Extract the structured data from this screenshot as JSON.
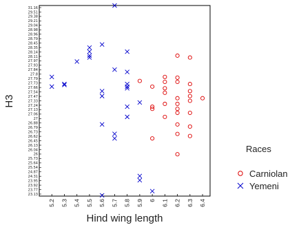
{
  "chart_data": {
    "type": "scatter",
    "title": "",
    "xlabel": "Hind wing length",
    "ylabel": "H3",
    "xlim": [
      5.1,
      6.46
    ],
    "ylim": [
      23.1,
      31.16
    ],
    "grid": false,
    "legend_placement": "right",
    "legend_title": "Races",
    "x_ticks": [
      "5.2",
      "5.3",
      "5.4",
      "5.5",
      "5.6",
      "5.7",
      "5.8",
      "5.9",
      "6",
      "6.1",
      "6.2",
      "6.3",
      "6.4"
    ],
    "y_ticks": [
      "31.16",
      "29.51",
      "29.38",
      "29.21",
      "29.04",
      "28.98",
      "28.96",
      "28.79",
      "28.45",
      "28.35",
      "28.14",
      "28.11",
      "27.97",
      "27.93",
      "27.84",
      "27.8",
      "27.79",
      "27.73",
      "27.66",
      "27.54",
      "27.47",
      "27.33",
      "27.24",
      "27.13",
      "27.06",
      "27",
      "26.88",
      "26.79",
      "26.73",
      "26.62",
      "26.45",
      "26.13",
      "26.04",
      "26",
      "25.73",
      "25.64",
      "25.54",
      "24.87",
      "24.31",
      "23.95",
      "23.92",
      "23.77",
      "23.13"
    ],
    "series": [
      {
        "name": "Carniolan",
        "marker": "circle",
        "color": "#dd0000",
        "points": [
          [
            5.9,
            27.97
          ],
          [
            6.0,
            27.73
          ],
          [
            6.0,
            26.88
          ],
          [
            6.0,
            26.79
          ],
          [
            6.0,
            25.54
          ],
          [
            6.1,
            28.14
          ],
          [
            6.1,
            27.93
          ],
          [
            6.1,
            27.66
          ],
          [
            6.1,
            27.47
          ],
          [
            6.1,
            27.0
          ],
          [
            6.1,
            26.45
          ],
          [
            6.2,
            29.04
          ],
          [
            6.2,
            28.11
          ],
          [
            6.2,
            27.93
          ],
          [
            6.2,
            27.24
          ],
          [
            6.2,
            27.0
          ],
          [
            6.2,
            26.79
          ],
          [
            6.2,
            26.62
          ],
          [
            6.2,
            26.13
          ],
          [
            6.2,
            25.73
          ],
          [
            6.2,
            24.87
          ],
          [
            6.3,
            28.96
          ],
          [
            6.3,
            27.84
          ],
          [
            6.3,
            27.54
          ],
          [
            6.3,
            27.33
          ],
          [
            6.3,
            27.13
          ],
          [
            6.3,
            26.62
          ],
          [
            6.3,
            26.04
          ],
          [
            6.3,
            25.64
          ],
          [
            6.4,
            27.24
          ]
        ]
      },
      {
        "name": "Yemeni",
        "marker": "x",
        "color": "#0000cc",
        "points": [
          [
            5.2,
            28.14
          ],
          [
            5.2,
            27.73
          ],
          [
            5.3,
            27.84
          ],
          [
            5.3,
            27.8
          ],
          [
            5.4,
            28.79
          ],
          [
            5.5,
            29.38
          ],
          [
            5.5,
            29.21
          ],
          [
            5.5,
            29.04
          ],
          [
            5.5,
            28.96
          ],
          [
            5.6,
            29.51
          ],
          [
            5.6,
            27.54
          ],
          [
            5.6,
            27.33
          ],
          [
            5.6,
            26.13
          ],
          [
            5.6,
            23.13
          ],
          [
            5.7,
            31.16
          ],
          [
            5.7,
            28.45
          ],
          [
            5.7,
            25.73
          ],
          [
            5.7,
            25.54
          ],
          [
            5.8,
            29.21
          ],
          [
            5.8,
            28.35
          ],
          [
            5.8,
            27.84
          ],
          [
            5.8,
            27.73
          ],
          [
            5.8,
            27.66
          ],
          [
            5.8,
            26.88
          ],
          [
            5.8,
            26.45
          ],
          [
            5.9,
            27.06
          ],
          [
            5.9,
            23.95
          ],
          [
            5.9,
            23.77
          ],
          [
            6.0,
            23.31
          ]
        ]
      }
    ]
  }
}
